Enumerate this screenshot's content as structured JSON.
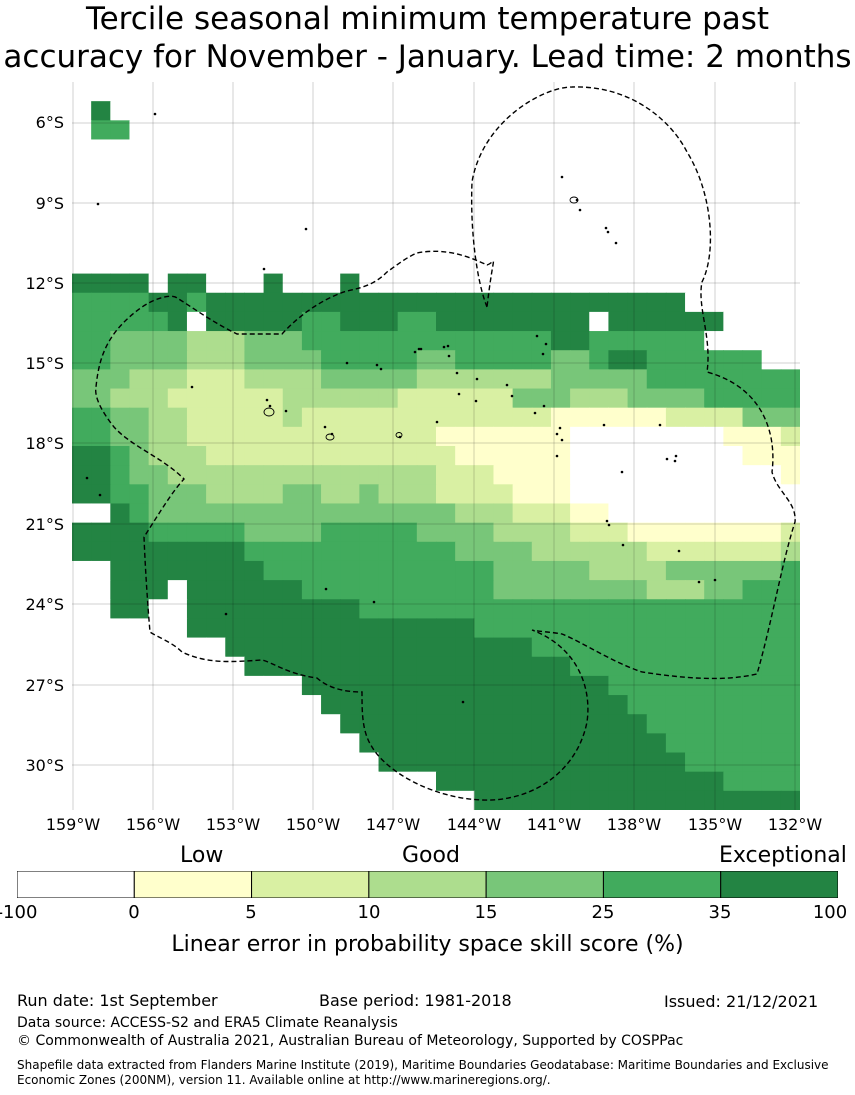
{
  "title_line1": "Tercile seasonal minimum temperature past",
  "title_line2": "accuracy for November - January. Lead time: 2 months",
  "map": {
    "lat_labels": [
      "6°S",
      "9°S",
      "12°S",
      "15°S",
      "18°S",
      "21°S",
      "24°S",
      "27°S",
      "30°S"
    ],
    "lon_labels": [
      "159°W",
      "156°W",
      "153°W",
      "150°W",
      "147°W",
      "144°W",
      "141°W",
      "138°W",
      "135°W",
      "132°W"
    ],
    "grid_color": "#000000",
    "field_rows": [
      "77777777777777777777777777777777777777",
      "76777777777777777777777777777777777777",
      "75577777777777777777777777777777777777",
      "77777777777777777777777777777777777777",
      "77777777777777777777777777777777777777",
      "77777777777777777777777777777777777777",
      "77777777777777777777777777777777777777",
      "77777777777777777777777777777777777777",
      "77777777777777777777777777777777777777",
      "77777777777777777777777777777777777777",
      "66667667776777677777777777777777777777",
      "55556656666666666666666666666666777777",
      "55555676666655666556666666676666667777",
      "55444433344455555555555556655555577777",
      "55444433344445555544555554456655555577",
      "44433322233334444433333334444455555555",
      "44333222222333333222222444333444455555",
      "55443322222322222222222221111112222444",
      "55443322222222222221111111000000001112",
      "66543332222222222222111111000000000111",
      "66544333333333333332221111000000000001",
      "66554443333443343332222111000000000000",
      "77654444444444444444333222110000000000",
      "66665555544445555544443333222111111112",
      "66666666655555555555444433333322222223",
      "77666666665555555555554444433334444445",
      "77666766666655555555554444444433344555",
      "77667766666666655555555555555555555555",
      "77777766666666666666655555555555555555",
      "77777777666666666666666655555555555555",
      "77777777766666666666666666555555555555",
      "77777777777766666666666666665555555555",
      "77777777777776666666666666666555555555",
      "77777777777777666666666666666655555555",
      "77777777777777766666666666666665555555",
      "77777777777777776666666666666666555555",
      "77777777777777777776666666666666665555",
      "77777777777777777777766666666666666666"
    ]
  },
  "colorbar": {
    "category_labels": [
      "Low",
      "Good",
      "Exceptional"
    ],
    "ticks": [
      "-100",
      "0",
      "5",
      "10",
      "15",
      "25",
      "35",
      "100"
    ],
    "colors": [
      "#ffffff",
      "#ffffcc",
      "#d9f0a3",
      "#addd8e",
      "#78c679",
      "#41ab5d",
      "#238443"
    ],
    "label": "Linear error in probability space skill score (%)"
  },
  "footer": {
    "run_date": "Run date: 1st September",
    "base_period": "Base period: 1981-2018",
    "issued": "Issued: 21/12/2021",
    "data_source": "Data source: ACCESS-S2 and ERA5 Climate Reanalysis",
    "copyright": "© Commonwealth of Australia 2021, Australian Bureau of Meteorology, Supported by COSPPac",
    "shapefile_line1": "Shapefile data extracted from Flanders Marine Institute (2019), Maritime Boundaries Geodatabase: Maritime Boundaries and Exclusive",
    "shapefile_line2": "Economic Zones (200NM), version 11. Available online at http://www.marineregions.org/."
  }
}
